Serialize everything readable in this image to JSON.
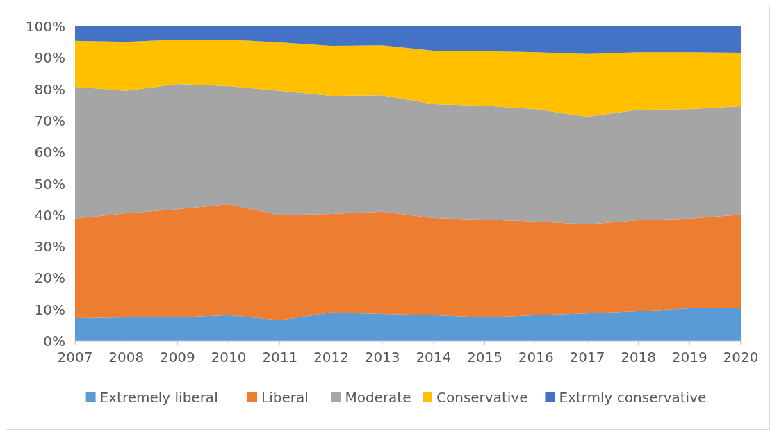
{
  "chart_data": {
    "type": "area",
    "stacked": true,
    "legend": "bottom",
    "grid": false,
    "x": [
      2007,
      2008,
      2009,
      2010,
      2011,
      2012,
      2013,
      2014,
      2015,
      2016,
      2017,
      2018,
      2019,
      2020
    ],
    "xlim": [
      2007,
      2020
    ],
    "xticks": [
      2007,
      2008,
      2009,
      2010,
      2011,
      2012,
      2013,
      2014,
      2015,
      2016,
      2017,
      2018,
      2019,
      2020
    ],
    "ylim": [
      0,
      100
    ],
    "yticks": [
      {
        "value": 0,
        "label": "0%"
      },
      {
        "value": 10,
        "label": "10%"
      },
      {
        "value": 20,
        "label": "20%"
      },
      {
        "value": 30,
        "label": "30%"
      },
      {
        "value": 40,
        "label": "40%"
      },
      {
        "value": 50,
        "label": "50%"
      },
      {
        "value": 60,
        "label": "60%"
      },
      {
        "value": 70,
        "label": "70%"
      },
      {
        "value": 80,
        "label": "80%"
      },
      {
        "value": 90,
        "label": "90%"
      },
      {
        "value": 100,
        "label": "100%"
      }
    ],
    "series": [
      {
        "name": "Extremely liberal",
        "color": "#5b9bd5",
        "values": [
          7.3,
          7.5,
          7.5,
          8.2,
          6.6,
          9.1,
          8.6,
          8.2,
          7.5,
          8.2,
          8.8,
          9.5,
          10.4,
          10.6
        ]
      },
      {
        "name": "Liberal",
        "color": "#ed7d31",
        "values": [
          31.6,
          33.1,
          34.4,
          35.3,
          33.4,
          31.3,
          32.5,
          30.9,
          31.1,
          29.8,
          28.3,
          28.9,
          28.5,
          29.6
        ]
      },
      {
        "name": "Moderate",
        "color": "#a5a5a5",
        "values": [
          41.9,
          38.9,
          39.8,
          37.5,
          39.5,
          37.5,
          37.0,
          36.2,
          36.2,
          35.7,
          34.2,
          35.1,
          34.8,
          34.4
        ]
      },
      {
        "name": "Conservative",
        "color": "#ffc000",
        "values": [
          14.6,
          15.6,
          14.1,
          14.8,
          15.4,
          15.9,
          15.9,
          17.0,
          17.3,
          18.1,
          19.9,
          18.3,
          18.1,
          17.0
        ]
      },
      {
        "name": "Extrmly conservative",
        "color": "#4472c4",
        "values": [
          4.6,
          4.9,
          4.2,
          4.2,
          5.1,
          6.2,
          6.0,
          7.7,
          7.9,
          8.2,
          8.8,
          8.2,
          8.2,
          8.4
        ]
      }
    ]
  }
}
